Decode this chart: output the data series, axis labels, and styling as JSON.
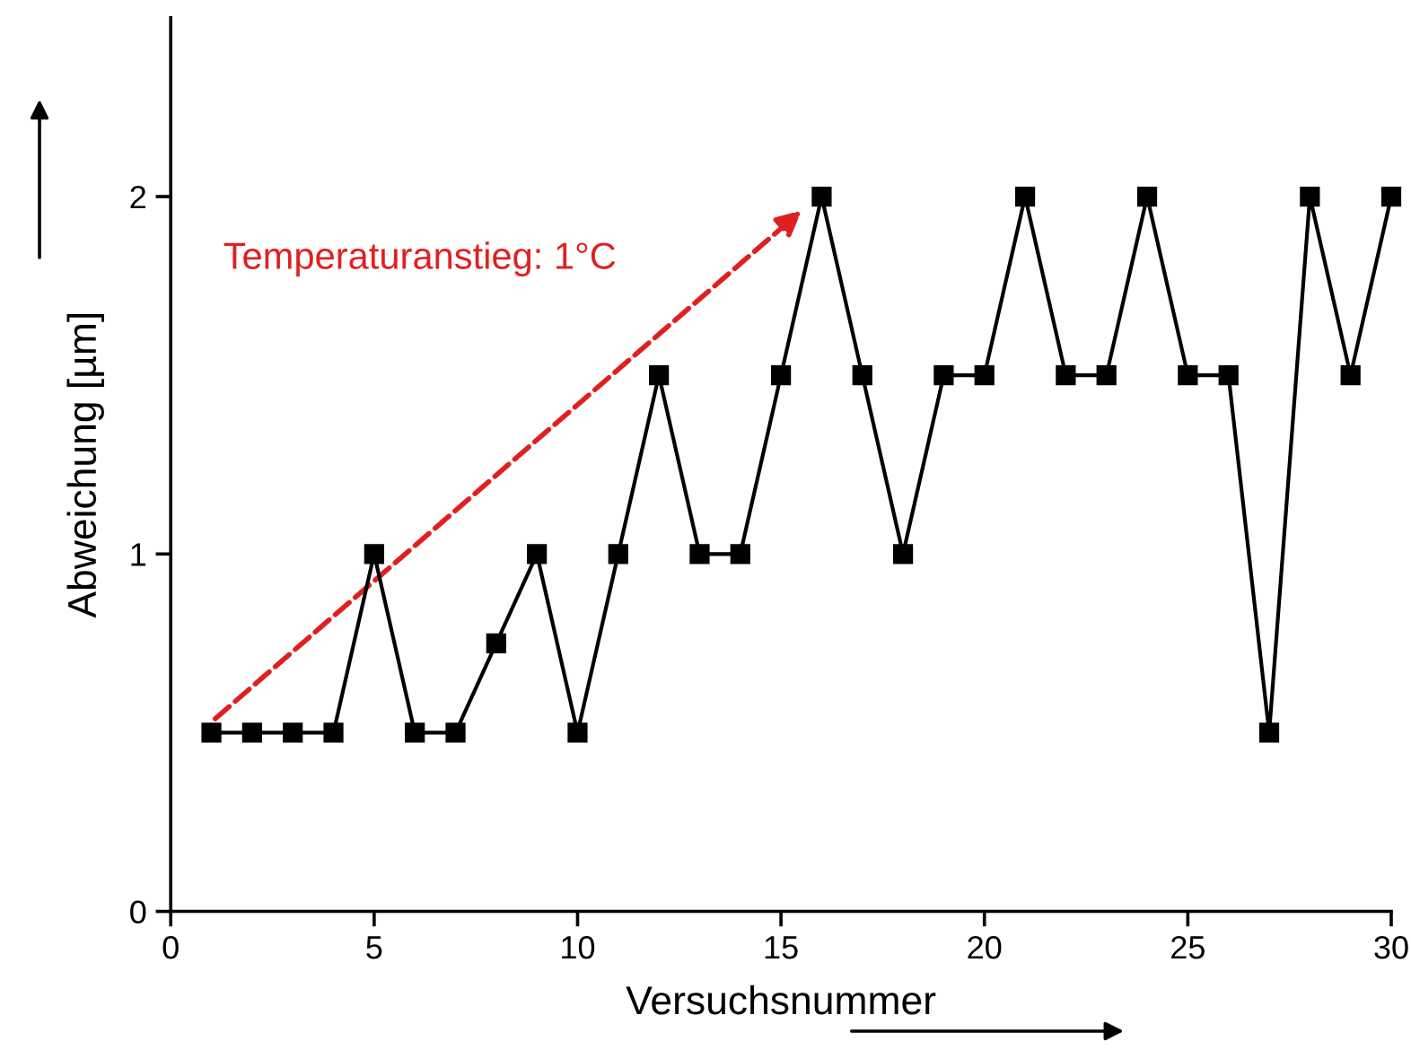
{
  "chart_data": {
    "type": "line",
    "xlabel": "Versuchsnummer",
    "ylabel": "Abweichung [µm]",
    "x": [
      1,
      2,
      3,
      4,
      5,
      6,
      7,
      8,
      9,
      10,
      11,
      12,
      13,
      14,
      15,
      16,
      17,
      18,
      19,
      20,
      21,
      22,
      23,
      24,
      25,
      26,
      27,
      28,
      29,
      30
    ],
    "series": [
      {
        "color": "#000000",
        "values": [
          0.5,
          0.5,
          0.5,
          0.5,
          1,
          0.5,
          0.5,
          0.75,
          1,
          0.5,
          1,
          1.5,
          1,
          1,
          1.5,
          2,
          1.5,
          1,
          1.5,
          1.5,
          2,
          1.5,
          1.5,
          2,
          1.5,
          1.5,
          0.5,
          2,
          1.5,
          2
        ]
      }
    ],
    "xlim": [
      0,
      30
    ],
    "xticks": [
      0,
      5,
      10,
      15,
      20,
      25,
      30
    ],
    "ylim": [
      0,
      2.5
    ],
    "yticks": [
      0,
      1,
      2
    ],
    "marker": "square",
    "line_style": "solid",
    "grid": false,
    "legend": false,
    "annotations": [
      "Temperaturanstieg: 1°C"
    ]
  }
}
